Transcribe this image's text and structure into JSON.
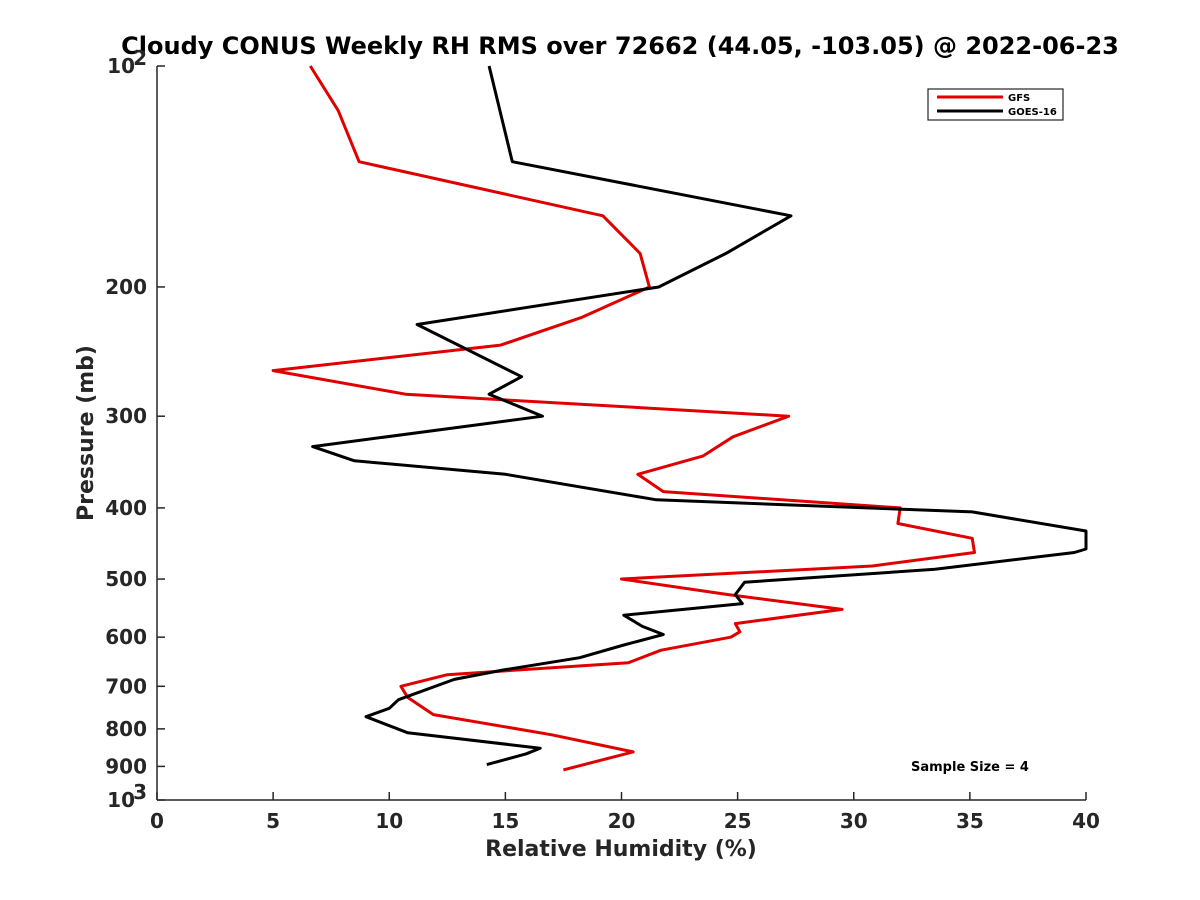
{
  "chart_data": {
    "type": "line",
    "title": "Cloudy CONUS Weekly RH RMS over 72662 (44.05, -103.05) @ 2022-06-23",
    "xlabel": "Relative Humidity (%)",
    "ylabel": "Pressure (mb)",
    "xlim": [
      0,
      40
    ],
    "ylim": [
      1000,
      100
    ],
    "yscale": "log",
    "y_inverted": true,
    "x_ticks": [
      0,
      5,
      10,
      15,
      20,
      25,
      30,
      35,
      40
    ],
    "x_tick_labels": [
      "0",
      "5",
      "10",
      "15",
      "20",
      "25",
      "30",
      "35",
      "40"
    ],
    "y_ticks": [
      100,
      200,
      300,
      400,
      500,
      600,
      700,
      800,
      900,
      1000
    ],
    "y_tick_labels": [
      "10^2",
      "200",
      "300",
      "400",
      "500",
      "600",
      "700",
      "800",
      "900",
      "10^3"
    ],
    "legend": {
      "placement": "top-right"
    },
    "grid": false,
    "annotation": "Sample Size = 4",
    "series": [
      {
        "name": "GFS",
        "color": "#e00000",
        "points": [
          [
            6.6,
            100
          ],
          [
            7.8,
            115
          ],
          [
            8.7,
            135
          ],
          [
            19.2,
            160
          ],
          [
            20.8,
            180
          ],
          [
            21.2,
            200
          ],
          [
            18.3,
            220
          ],
          [
            14.8,
            240
          ],
          [
            5.0,
            260
          ],
          [
            10.7,
            280
          ],
          [
            27.2,
            300
          ],
          [
            24.8,
            320
          ],
          [
            23.5,
            340
          ],
          [
            20.7,
            360
          ],
          [
            21.8,
            380
          ],
          [
            32.0,
            400
          ],
          [
            31.9,
            420
          ],
          [
            35.1,
            440
          ],
          [
            35.2,
            460
          ],
          [
            30.8,
            480
          ],
          [
            20.0,
            500
          ],
          [
            24.6,
            525
          ],
          [
            29.5,
            550
          ],
          [
            24.9,
            575
          ],
          [
            25.1,
            590
          ],
          [
            24.7,
            600
          ],
          [
            21.7,
            625
          ],
          [
            20.3,
            650
          ],
          [
            12.5,
            675
          ],
          [
            10.5,
            700
          ],
          [
            10.8,
            725
          ],
          [
            11.9,
            765
          ],
          [
            17.0,
            815
          ],
          [
            20.5,
            860
          ],
          [
            17.5,
            910
          ]
        ]
      },
      {
        "name": "GOES-16",
        "color": "#000000",
        "points": [
          [
            14.3,
            100
          ],
          [
            15.3,
            135
          ],
          [
            27.3,
            160
          ],
          [
            24.5,
            180
          ],
          [
            21.6,
            200
          ],
          [
            11.2,
            225
          ],
          [
            15.7,
            265
          ],
          [
            14.3,
            280
          ],
          [
            16.6,
            300
          ],
          [
            6.7,
            330
          ],
          [
            8.5,
            345
          ],
          [
            15.0,
            360
          ],
          [
            21.5,
            390
          ],
          [
            35.1,
            405
          ],
          [
            40.0,
            430
          ],
          [
            40.0,
            455
          ],
          [
            39.5,
            460
          ],
          [
            33.5,
            485
          ],
          [
            25.3,
            505
          ],
          [
            24.9,
            525
          ],
          [
            25.2,
            540
          ],
          [
            20.1,
            560
          ],
          [
            20.9,
            580
          ],
          [
            21.8,
            595
          ],
          [
            20.1,
            615
          ],
          [
            18.2,
            640
          ],
          [
            14.9,
            665
          ],
          [
            12.8,
            685
          ],
          [
            10.4,
            730
          ],
          [
            10.0,
            750
          ],
          [
            9.0,
            770
          ],
          [
            10.8,
            810
          ],
          [
            16.5,
            850
          ],
          [
            15.9,
            865
          ],
          [
            14.2,
            895
          ]
        ]
      }
    ]
  }
}
